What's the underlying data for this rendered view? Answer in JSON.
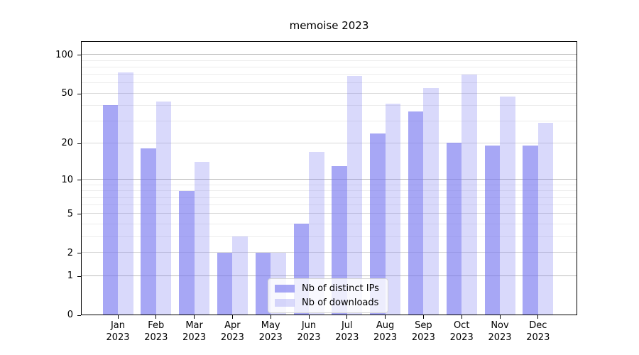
{
  "title": "memoise 2023",
  "chart_data": {
    "type": "bar",
    "title": "memoise 2023",
    "categories": [
      "Jan 2023",
      "Feb 2023",
      "Mar 2023",
      "Apr 2023",
      "May 2023",
      "Jun 2023",
      "Jul 2023",
      "Aug 2023",
      "Sep 2023",
      "Oct 2023",
      "Nov 2023",
      "Dec 2023"
    ],
    "x_tick_line1": [
      "Jan",
      "Feb",
      "Mar",
      "Apr",
      "May",
      "Jun",
      "Jul",
      "Aug",
      "Sep",
      "Oct",
      "Nov",
      "Dec"
    ],
    "x_tick_line2": "2023",
    "series": [
      {
        "name": "Nb of distinct IPs",
        "color": "rgba(120,120,240,0.65)",
        "values": [
          40,
          18,
          8,
          2,
          2,
          4,
          13,
          24,
          36,
          20,
          19,
          19
        ]
      },
      {
        "name": "Nb of downloads",
        "color": "rgba(120,120,240,0.28)",
        "values": [
          73,
          43,
          14,
          3,
          2,
          17,
          68,
          41,
          55,
          70,
          47,
          29
        ]
      }
    ],
    "yscale": "log1p",
    "yticks": [
      0,
      1,
      2,
      5,
      10,
      20,
      50,
      100
    ],
    "ylim": [
      0,
      130
    ],
    "grid": true,
    "legend_position": "lower center",
    "gridline_colors": {
      "decade": "#bbbbbb",
      "major": "#d9d9d9",
      "minor": "#ececec"
    },
    "gridline_values": {
      "decade": [
        1,
        10,
        100
      ],
      "major": [
        2,
        5,
        20,
        50
      ],
      "minor": [
        3,
        4,
        6,
        7,
        8,
        9,
        30,
        40,
        60,
        70,
        80,
        90
      ]
    }
  }
}
